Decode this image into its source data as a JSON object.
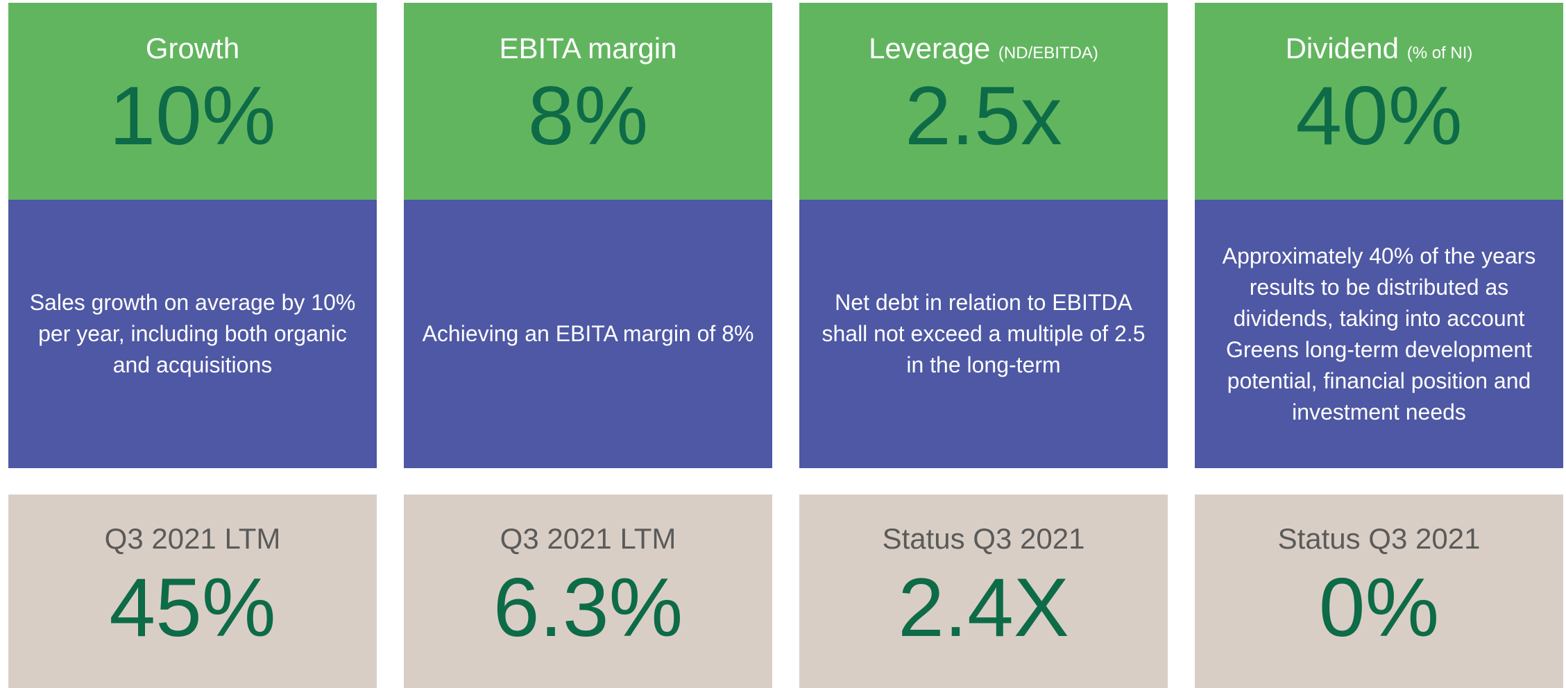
{
  "cards": [
    {
      "title": "Growth",
      "target": "10%",
      "description": "Sales growth on average by 10% per year, including both organic and acquisitions",
      "status_label": "Q3 2021 LTM",
      "status_value": "45%"
    },
    {
      "title": "EBITA margin",
      "target": "8%",
      "description": "Achieving an EBITA margin of 8%",
      "status_label": "Q3 2021 LTM",
      "status_value": "6.3%"
    },
    {
      "title": "Leverage",
      "title_note": "(ND/EBITDA)",
      "target": "2.5x",
      "description": "Net debt in relation to EBITDA shall not exceed a multiple of 2.5 in the long-term",
      "status_label": "Status Q3 2021",
      "status_value": "2.4X"
    },
    {
      "title": "Dividend",
      "title_note": "(% of NI)",
      "target": "40%",
      "description": "Approximately 40% of the years results to be distributed as dividends, taking into account Greens long-term development potential, financial position and investment needs",
      "status_label": "Status Q3 2021",
      "status_value": "0%"
    }
  ]
}
